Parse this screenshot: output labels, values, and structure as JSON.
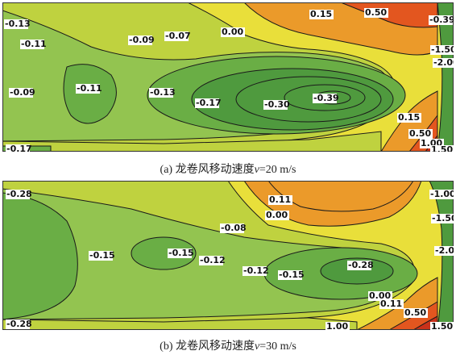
{
  "colors": {
    "deep_green": "#4f9a3e",
    "mid_green": "#6aae45",
    "light_green": "#93c450",
    "yellow_green": "#bfd23f",
    "yellow": "#e9df3a",
    "orange": "#eb9a2a",
    "red_orange": "#e3561f",
    "red": "#c9311a"
  },
  "panels": [
    {
      "caption": {
        "prefix": "(a) 龙卷风移动速度",
        "var": "v",
        "suffix": "=20 m/s"
      },
      "labels": [
        "-0.13",
        "-0.11",
        "-0.09",
        "-0.07",
        "0.00",
        "0.15",
        "0.50",
        "-0.39",
        "-1.50",
        "-2.00",
        "-0.09",
        "-0.11",
        "-0.13",
        "-0.17",
        "-0.30",
        "-0.39",
        "0.15",
        "0.50",
        "1.00",
        "1.50",
        "-0.17"
      ]
    },
    {
      "caption": {
        "prefix": "(b) 龙卷风移动速度",
        "var": "v",
        "suffix": "=30 m/s"
      },
      "labels": [
        "-0.28",
        "0.11",
        "-1.00",
        "0.00",
        "-1.50",
        "-0.08",
        "-2.00",
        "-0.15",
        "-0.15",
        "-0.12",
        "-0.12",
        "-0.15",
        "-0.28",
        "0.00",
        "0.11",
        "0.50",
        "1.00",
        "1.50",
        "-0.28"
      ]
    }
  ]
}
